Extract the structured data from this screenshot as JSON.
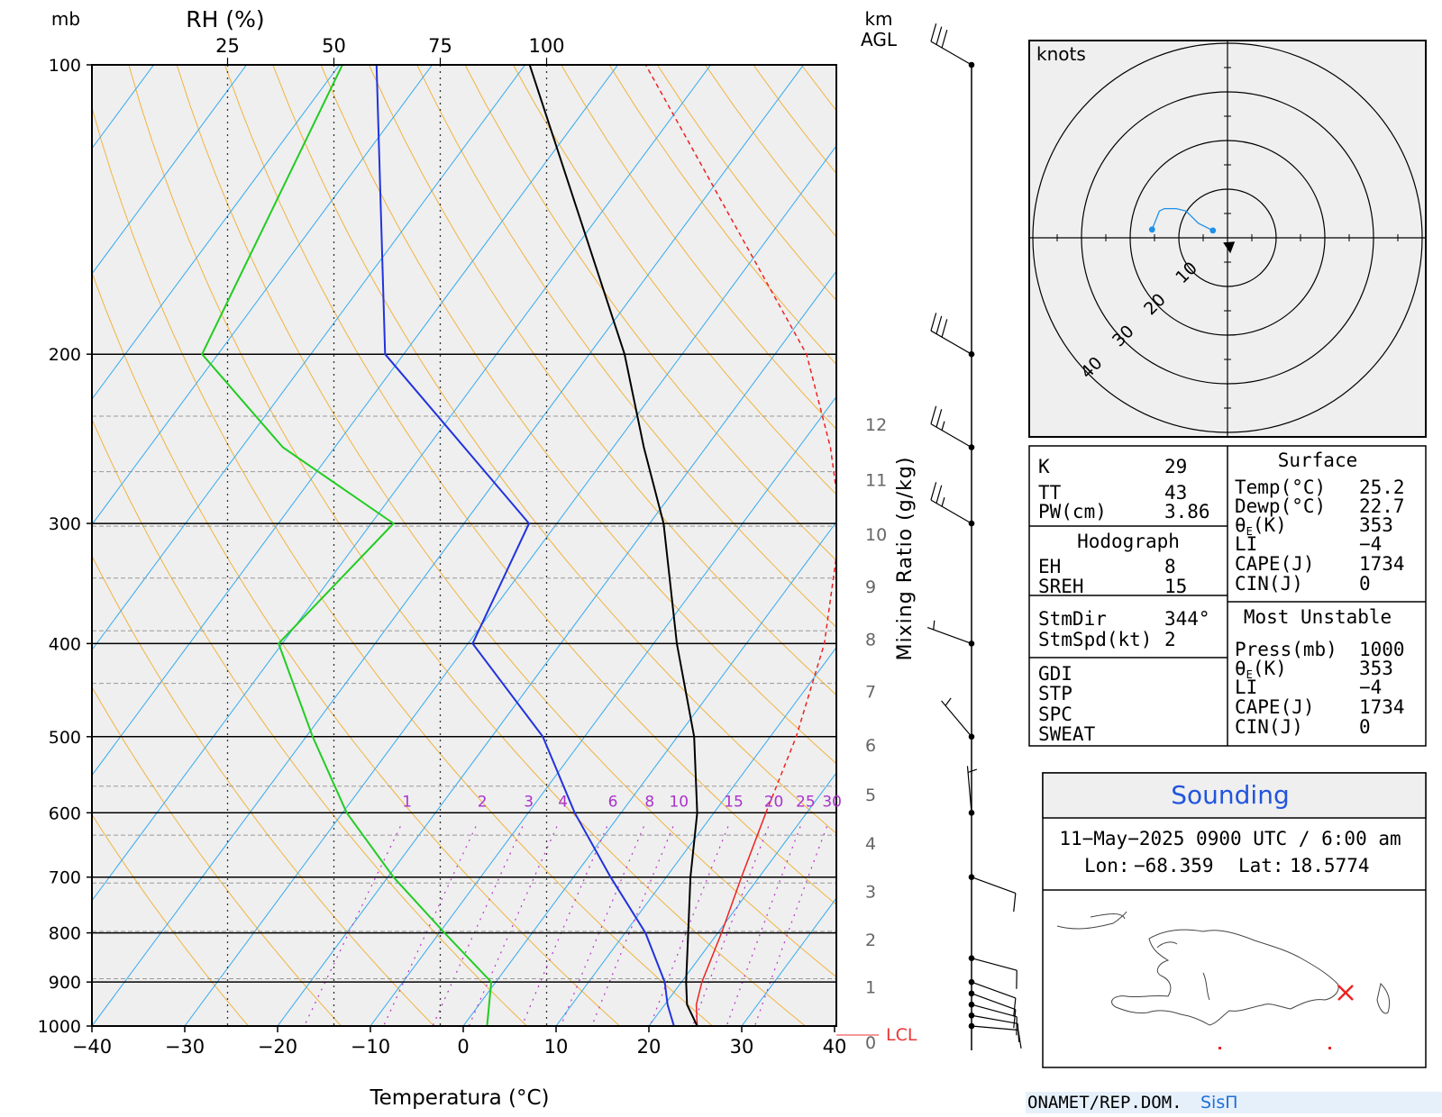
{
  "chart_data": [
    {
      "type": "line",
      "subtype": "skew-t log-p sounding",
      "xlabel": "Temperatura (°C)",
      "pressure_label": "mb",
      "rh_label": "RH (%)",
      "rh_ticks": [
        "25",
        "50",
        "75",
        "100"
      ],
      "height_label_top": "km",
      "height_label_bottom": "AGL",
      "mixing_ratio_axis_label": "Mixing Ratio (g/kg)",
      "pressure_levels": [
        100,
        200,
        300,
        400,
        500,
        600,
        700,
        800,
        900,
        1000
      ],
      "temperature_ticks": [
        -40,
        -30,
        -20,
        -10,
        0,
        10,
        20,
        30,
        40
      ],
      "height_ticks_km": [
        "0",
        "1",
        "2",
        "3",
        "4",
        "5",
        "6",
        "7",
        "8",
        "9",
        "10",
        "11",
        "12"
      ],
      "mixing_ratio_labels": [
        "1",
        "2",
        "3",
        "4",
        "6",
        "8",
        "10",
        "15",
        "20",
        "25",
        "30"
      ],
      "lcl_label": "LCL",
      "series": [
        {
          "name": "Temperature",
          "color": "#000000",
          "points": [
            [
              1000,
              25.2
            ],
            [
              950,
              22.4
            ],
            [
              900,
              20.5
            ],
            [
              800,
              16.8
            ],
            [
              700,
              12.6
            ],
            [
              600,
              8.2
            ],
            [
              500,
              1.8
            ],
            [
              400,
              -7.5
            ],
            [
              300,
              -18.5
            ],
            [
              250,
              -26.7
            ],
            [
              200,
              -36.2
            ],
            [
              100,
              -69.5
            ]
          ]
        },
        {
          "name": "Dewpoint",
          "color": "#2233dd",
          "points": [
            [
              1000,
              22.7
            ],
            [
              950,
              20.3
            ],
            [
              900,
              18.2
            ],
            [
              800,
              12.2
            ],
            [
              700,
              4.0
            ],
            [
              600,
              -5.0
            ],
            [
              500,
              -14.5
            ],
            [
              400,
              -29.5
            ],
            [
              300,
              -33.0
            ],
            [
              200,
              -62.0
            ],
            [
              100,
              -86.0
            ]
          ]
        },
        {
          "name": "Parcel",
          "color": "#ee2222",
          "dashed_above_pressure": 600,
          "points": [
            [
              1000,
              25.2
            ],
            [
              950,
              23.4
            ],
            [
              900,
              22.2
            ],
            [
              800,
              20.4
            ],
            [
              700,
              18.1
            ],
            [
              600,
              15.6
            ],
            [
              500,
              12.8
            ],
            [
              400,
              8.4
            ],
            [
              300,
              0.6
            ],
            [
              250,
              -6.6
            ],
            [
              200,
              -16.6
            ],
            [
              100,
              -57.0
            ]
          ]
        },
        {
          "name": "RH",
          "color": "#22cc22",
          "unit": "%",
          "points": [
            [
              1000,
              86
            ],
            [
              900,
              87
            ],
            [
              800,
              76
            ],
            [
              700,
              64
            ],
            [
              600,
              53
            ],
            [
              500,
              45
            ],
            [
              400,
              37
            ],
            [
              300,
              64
            ],
            [
              250,
              38
            ],
            [
              200,
              19
            ],
            [
              100,
              52
            ]
          ]
        }
      ]
    },
    {
      "type": "scatter",
      "subtype": "hodograph",
      "unit_label": "knots",
      "ring_labels": [
        "10",
        "20",
        "30",
        "40"
      ],
      "points": [
        [
          -3,
          1.5
        ],
        [
          -6,
          3
        ],
        [
          -8.5,
          5.5
        ],
        [
          -10.5,
          6
        ],
        [
          -13,
          6
        ],
        [
          -14,
          5.5
        ],
        [
          -15.5,
          1.7
        ]
      ],
      "storm_motion": [
        0.4,
        -1.9
      ]
    }
  ],
  "wind_barbs": [
    {
      "pressure": 100,
      "direction": 300,
      "speed": 30
    },
    {
      "pressure": 200,
      "direction": 300,
      "speed": 30
    },
    {
      "pressure": 250,
      "direction": 300,
      "speed": 25
    },
    {
      "pressure": 300,
      "direction": 300,
      "speed": 25
    },
    {
      "pressure": 400,
      "direction": 290,
      "speed": 5
    },
    {
      "pressure": 500,
      "direction": 320,
      "speed": 5
    },
    {
      "pressure": 600,
      "direction": 355,
      "speed": 5
    },
    {
      "pressure": 700,
      "direction": 110,
      "speed": 10
    },
    {
      "pressure": 850,
      "direction": 105,
      "speed": 10
    },
    {
      "pressure": 900,
      "direction": 110,
      "speed": 10
    },
    {
      "pressure": 925,
      "direction": 110,
      "speed": 10
    },
    {
      "pressure": 950,
      "direction": 105,
      "speed": 10
    },
    {
      "pressure": 975,
      "direction": 100,
      "speed": 10
    },
    {
      "pressure": 1000,
      "direction": 95,
      "speed": 10
    }
  ],
  "indices": {
    "K_label": "K",
    "K": "29",
    "TT_label": "TT",
    "TT": "43",
    "PW_label": "PW(cm)",
    "PW": "3.86",
    "hodograph_title": "Hodograph",
    "EH_label": "EH",
    "EH": "8",
    "SREH_label": "SREH",
    "SREH": "15",
    "StmDir_label": "StmDir",
    "StmDir": "344°",
    "StmSpd_label": "StmSpd(kt)",
    "StmSpd": "2",
    "GDI_label": "GDI",
    "STP_label": "STP",
    "SPC_label": "SPC",
    "SWEAT_label": "SWEAT"
  },
  "surface": {
    "title": "Surface",
    "temp_label": "Temp(°C)",
    "temp": "25.2",
    "dewp_label": "Dewp(°C)",
    "dewp": "22.7",
    "theta_label": "θ",
    "theta_sub": "E",
    "theta_unit": "(K)",
    "theta": "353",
    "li_label": "LI",
    "li": "−4",
    "cape_label": "CAPE(J)",
    "cape": "1734",
    "cin_label": "CIN(J)",
    "cin": "0"
  },
  "most_unstable": {
    "title": "Most Unstable",
    "press_label": "Press(mb)",
    "press": "1000",
    "theta_label": "θ",
    "theta_sub": "E",
    "theta_unit": "(K)",
    "theta": "353",
    "li_label": "LI",
    "li": "−4",
    "cape_label": "CAPE(J)",
    "cape": "1734",
    "cin_label": "CIN(J)",
    "cin": "0"
  },
  "info": {
    "title": "Sounding",
    "datetime": "11−May−2025 0900  UTC / 6:00 am",
    "lon_label": "Lon:",
    "lon": "−68.359",
    "lat_label": "Lat:",
    "lat": "18.5774",
    "title_color": "#2255dd",
    "marker_color": "#ee2222"
  },
  "footer": {
    "org": "ONAMET/REP.DOM.",
    "brand": "SisΠ",
    "brand_color": "#1e6fd9"
  }
}
